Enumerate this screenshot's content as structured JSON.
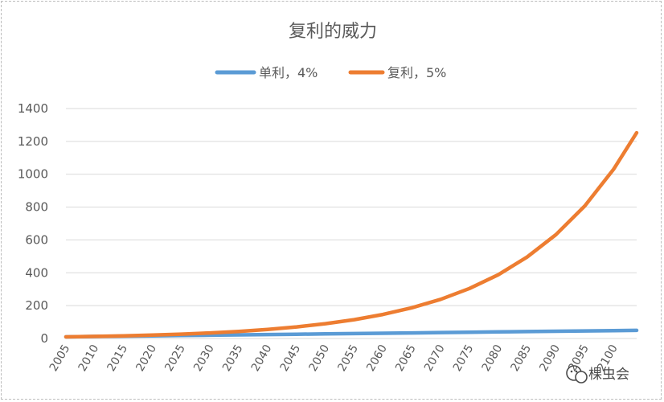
{
  "chart_data": {
    "type": "line",
    "title": "复利的威力",
    "xlabel": "",
    "ylabel": "",
    "legend_position": "top",
    "grid": true,
    "ylim": [
      0,
      1400
    ],
    "yticks": [
      0,
      200,
      400,
      600,
      800,
      1000,
      1200,
      1400
    ],
    "xlim": [
      2005,
      2104
    ],
    "xtick_labels": [
      "2005",
      "2010",
      "2015",
      "2020",
      "2025",
      "2030",
      "2035",
      "2040",
      "2045",
      "2050",
      "2055",
      "2060",
      "2065",
      "2070",
      "2075",
      "2080",
      "2085",
      "2090",
      "2095",
      "2100"
    ],
    "series": [
      {
        "name": "单利，4%",
        "color": "#5B9BD5",
        "x": [
          2005,
          2010,
          2015,
          2020,
          2025,
          2030,
          2035,
          2040,
          2045,
          2050,
          2055,
          2060,
          2065,
          2070,
          2075,
          2080,
          2085,
          2090,
          2095,
          2100,
          2104
        ],
        "values": [
          10,
          12,
          14,
          16,
          18,
          20,
          22,
          24,
          26,
          28,
          30,
          32,
          34,
          36,
          38,
          40,
          42,
          44,
          46,
          48,
          49.6
        ]
      },
      {
        "name": "复利，5%",
        "color": "#ED7D31",
        "x": [
          2005,
          2010,
          2015,
          2020,
          2025,
          2030,
          2035,
          2040,
          2045,
          2050,
          2055,
          2060,
          2065,
          2070,
          2075,
          2080,
          2085,
          2090,
          2095,
          2100,
          2104
        ],
        "values": [
          10,
          12.8,
          16.3,
          20.8,
          26.5,
          33.9,
          43.2,
          55.2,
          70.4,
          89.9,
          114.7,
          146.4,
          186.8,
          238.4,
          304.3,
          388.4,
          495.7,
          632.6,
          807.4,
          1030.5,
          1252.6
        ]
      }
    ]
  },
  "watermark": "棵虫会"
}
